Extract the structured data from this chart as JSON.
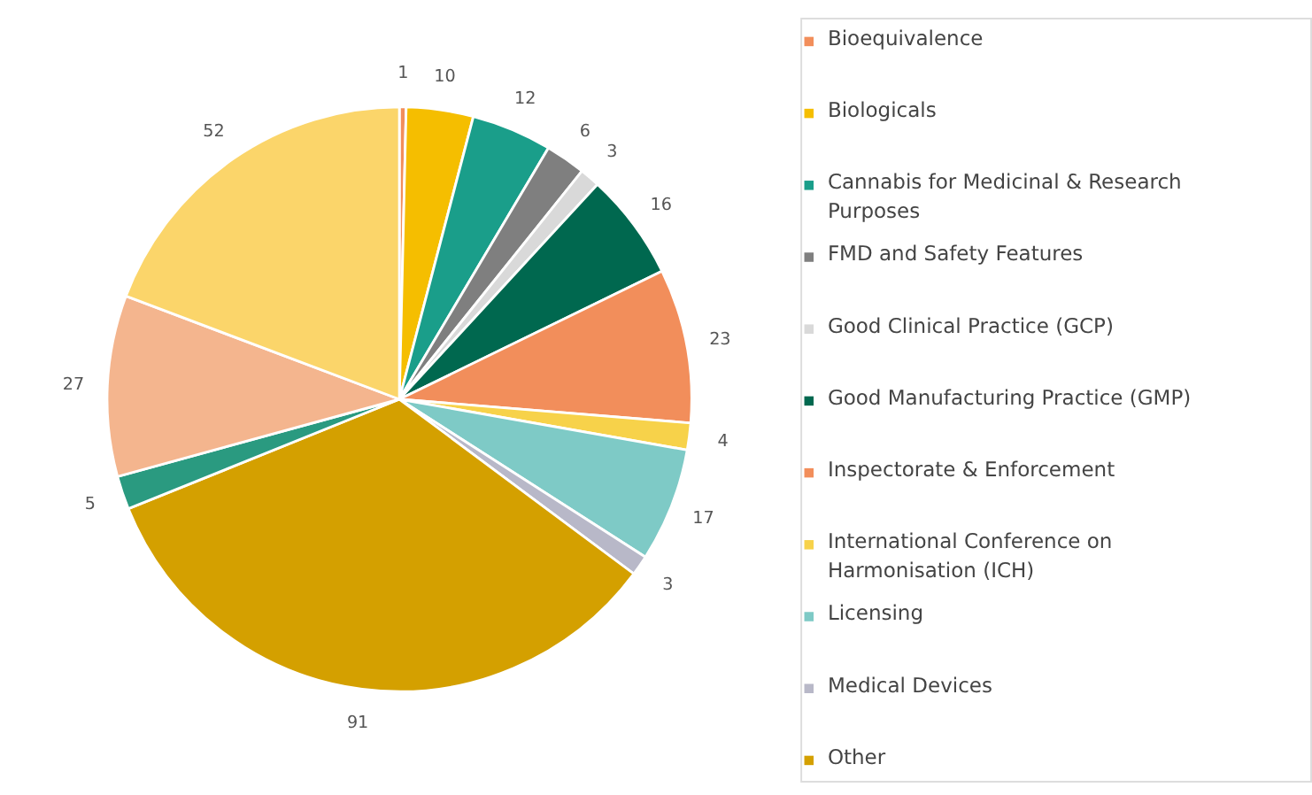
{
  "chart_data": {
    "type": "pie",
    "categories": [
      "Bioequivalence",
      "Biologicals",
      "Cannabis for Medicinal & Research Purposes",
      "FMD and Safety Features",
      "Good Clinical Practice (GCP)",
      "Good Manufacturing Practice (GMP)",
      "Inspectorate & Enforcement",
      "International Conference on Harmonisation (ICH)",
      "Licensing",
      "Medical Devices",
      "Other",
      null,
      null,
      null
    ],
    "values": [
      1,
      10,
      12,
      6,
      3,
      16,
      23,
      4,
      17,
      3,
      91,
      5,
      27,
      52
    ],
    "colors": [
      "#f28e5b",
      "#f5be00",
      "#1a9e8a",
      "#7f7f7f",
      "#d9d9d9",
      "#00684f",
      "#f28e5b",
      "#f7d24a",
      "#7ecac6",
      "#b8b8c8",
      "#d4a000",
      "#2a9a80",
      "#f4b58e",
      "#fbd56a"
    ],
    "data_labels": true,
    "legend": "right"
  }
}
